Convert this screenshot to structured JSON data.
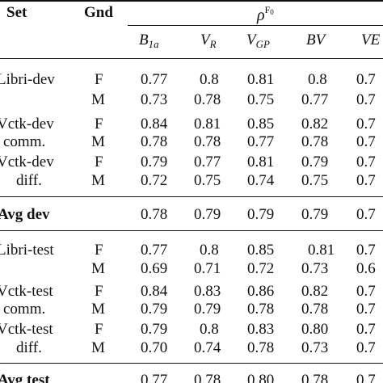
{
  "header": {
    "set": "Set",
    "gnd": "Gnd",
    "rho": "ρ",
    "rho_sup_main": "F",
    "rho_sup_sub": "0",
    "cols": [
      {
        "main": "B",
        "sub": "1a"
      },
      {
        "main": "V",
        "sub": "R"
      },
      {
        "main": "V",
        "sub": "GP"
      },
      {
        "main": "BV",
        "sub": ""
      },
      {
        "main": "VE",
        "sub": ""
      }
    ]
  },
  "rows": {
    "r0": {
      "set": "Libri-dev",
      "gnd": "F",
      "v": [
        "0.77",
        "0.8",
        "0.81",
        "0.8",
        "0.7"
      ]
    },
    "r1": {
      "set": "",
      "gnd": "M",
      "v": [
        "0.73",
        "0.78",
        "0.75",
        "0.77",
        "0.7"
      ]
    },
    "r2": {
      "set": "Vctk-dev",
      "gnd": "F",
      "v": [
        "0.84",
        "0.81",
        "0.85",
        "0.82",
        "0.7"
      ]
    },
    "r3": {
      "set": "comm.",
      "gnd": "M",
      "v": [
        "0.78",
        "0.78",
        "0.77",
        "0.78",
        "0.7"
      ]
    },
    "r4": {
      "set": "Vctk-dev",
      "gnd": "F",
      "v": [
        "0.79",
        "0.77",
        "0.81",
        "0.79",
        "0.7"
      ]
    },
    "r5": {
      "set": "diff.",
      "gnd": "M",
      "v": [
        "0.72",
        "0.75",
        "0.74",
        "0.75",
        "0.7"
      ]
    },
    "avg_dev": {
      "set": "Avg dev",
      "v": [
        "0.78",
        "0.79",
        "0.79",
        "0.79",
        "0.7"
      ]
    },
    "r6": {
      "set": "Libri-test",
      "gnd": "F",
      "v": [
        "0.77",
        "0.8",
        "0.85",
        "0.81",
        "0.7"
      ]
    },
    "r7": {
      "set": "",
      "gnd": "M",
      "v": [
        "0.69",
        "0.71",
        "0.72",
        "0.73",
        "0.6"
      ]
    },
    "r8": {
      "set": "Vctk-test",
      "gnd": "F",
      "v": [
        "0.84",
        "0.83",
        "0.86",
        "0.82",
        "0.7"
      ]
    },
    "r9": {
      "set": "comm.",
      "gnd": "M",
      "v": [
        "0.79",
        "0.79",
        "0.78",
        "0.78",
        "0.7"
      ]
    },
    "r10": {
      "set": "Vctk-test",
      "gnd": "F",
      "v": [
        "0.79",
        "0.8",
        "0.83",
        "0.80",
        "0.7"
      ]
    },
    "r11": {
      "set": "diff.",
      "gnd": "M",
      "v": [
        "0.70",
        "0.74",
        "0.78",
        "0.73",
        "0.7"
      ]
    },
    "avg_test": {
      "set": "Avg test",
      "v": [
        "0.77",
        "0.78",
        "0.80",
        "0.78",
        "0.7"
      ]
    }
  }
}
